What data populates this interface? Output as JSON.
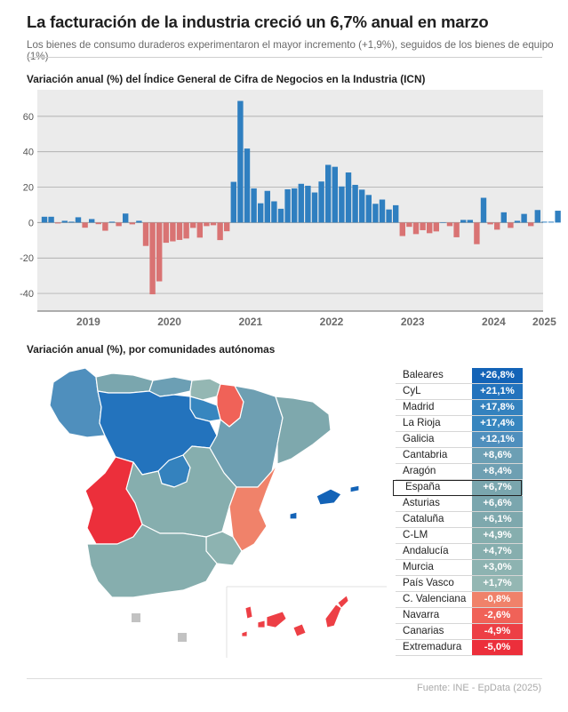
{
  "header": {
    "title": "La facturación de la industria creció un 6,7% anual en marzo",
    "subtitle": "Los bienes de consumo duraderos experimentaron el mayor incremento (+1,9%), seguidos de los bienes de equipo (1%)"
  },
  "colors": {
    "positive": "#2f7fc0",
    "negative": "#d97373",
    "grid": "#9d9d9d",
    "background": "#ebebeb"
  },
  "chart_data": {
    "type": "bar",
    "title": "Variación anual (%) del Índice General de Cifra de Negocios en la Industria (ICN)",
    "xlabel": "",
    "ylabel": "",
    "ylim": [
      -50,
      75
    ],
    "yticks": [
      -40,
      -20,
      0,
      20,
      40,
      60
    ],
    "grid": true,
    "x_tick_labels": [
      "2019",
      "2020",
      "2021",
      "2022",
      "2023",
      "2024",
      "2025"
    ],
    "x_tick_positions": [
      6.5,
      18.5,
      30.5,
      42.5,
      54.5,
      66.5,
      74
    ],
    "values": [
      3.3,
      3.3,
      -0.5,
      1.0,
      0.5,
      3.0,
      -2.9,
      2.0,
      -0.9,
      -4.6,
      0.5,
      -2.0,
      5.1,
      -1.0,
      1.0,
      -13.2,
      -40.5,
      -33.2,
      -11.4,
      -10.6,
      -9.8,
      -9.0,
      -3.0,
      -8.5,
      -2.0,
      -1.5,
      -9.9,
      -4.9,
      23.0,
      68.7,
      41.8,
      19.3,
      10.9,
      17.9,
      12.0,
      7.8,
      18.8,
      19.3,
      21.9,
      20.8,
      17.0,
      23.2,
      32.6,
      31.5,
      20.4,
      28.3,
      21.3,
      18.6,
      15.6,
      10.6,
      13.0,
      7.4,
      9.8,
      -7.6,
      -2.4,
      -6.5,
      -4.3,
      -6.0,
      -5.0,
      0.2,
      -2.0,
      -8.3,
      1.5,
      1.5,
      -12.2,
      14.0,
      -1.0,
      -4.0,
      5.8,
      -3.0,
      1.0,
      4.9,
      -2.0,
      7.1,
      0.5,
      0.5,
      6.7
    ]
  },
  "regional": {
    "title": "Variación anual (%), por comunidades autónomas",
    "highlight": "España",
    "rows": [
      {
        "name": "Baleares",
        "value": "+26,8%",
        "num": 26.8,
        "color": "#1363b7"
      },
      {
        "name": "CyL",
        "value": "+21,1%",
        "num": 21.1,
        "color": "#2373bd"
      },
      {
        "name": "Madrid",
        "value": "+17,8%",
        "num": 17.8,
        "color": "#3482be"
      },
      {
        "name": "La Rioja",
        "value": "+17,4%",
        "num": 17.4,
        "color": "#3786bf"
      },
      {
        "name": "Galicia",
        "value": "+12,1%",
        "num": 12.1,
        "color": "#4f8fbd"
      },
      {
        "name": "Cantabria",
        "value": "+8,6%",
        "num": 8.6,
        "color": "#6c9fb4"
      },
      {
        "name": "Aragón",
        "value": "+8,4%",
        "num": 8.4,
        "color": "#6e9fb2"
      },
      {
        "name": "España",
        "value": "+6,7%",
        "num": 6.7,
        "color": "#7aa6ae"
      },
      {
        "name": "Asturias",
        "value": "+6,6%",
        "num": 6.6,
        "color": "#7aa6ae"
      },
      {
        "name": "Cataluña",
        "value": "+6,1%",
        "num": 6.1,
        "color": "#7ea8ad"
      },
      {
        "name": "C-LM",
        "value": "+4,9%",
        "num": 4.9,
        "color": "#86aeae"
      },
      {
        "name": "Andalucía",
        "value": "+4,7%",
        "num": 4.7,
        "color": "#86aeae"
      },
      {
        "name": "Murcia",
        "value": "+3,0%",
        "num": 3.0,
        "color": "#8db3b1"
      },
      {
        "name": "País Vasco",
        "value": "+1,7%",
        "num": 1.7,
        "color": "#94b7b3"
      },
      {
        "name": "C. Valenciana",
        "value": "-0,8%",
        "num": -0.8,
        "color": "#f0826a"
      },
      {
        "name": "Navarra",
        "value": "-2,6%",
        "num": -2.6,
        "color": "#f06258"
      },
      {
        "name": "Canarias",
        "value": "-4,9%",
        "num": -4.9,
        "color": "#ed3f45"
      },
      {
        "name": "Extremadura",
        "value": "-5,0%",
        "num": -5.0,
        "color": "#ec2f3b"
      }
    ]
  },
  "source": "Fuente: INE - EpData (2025)"
}
